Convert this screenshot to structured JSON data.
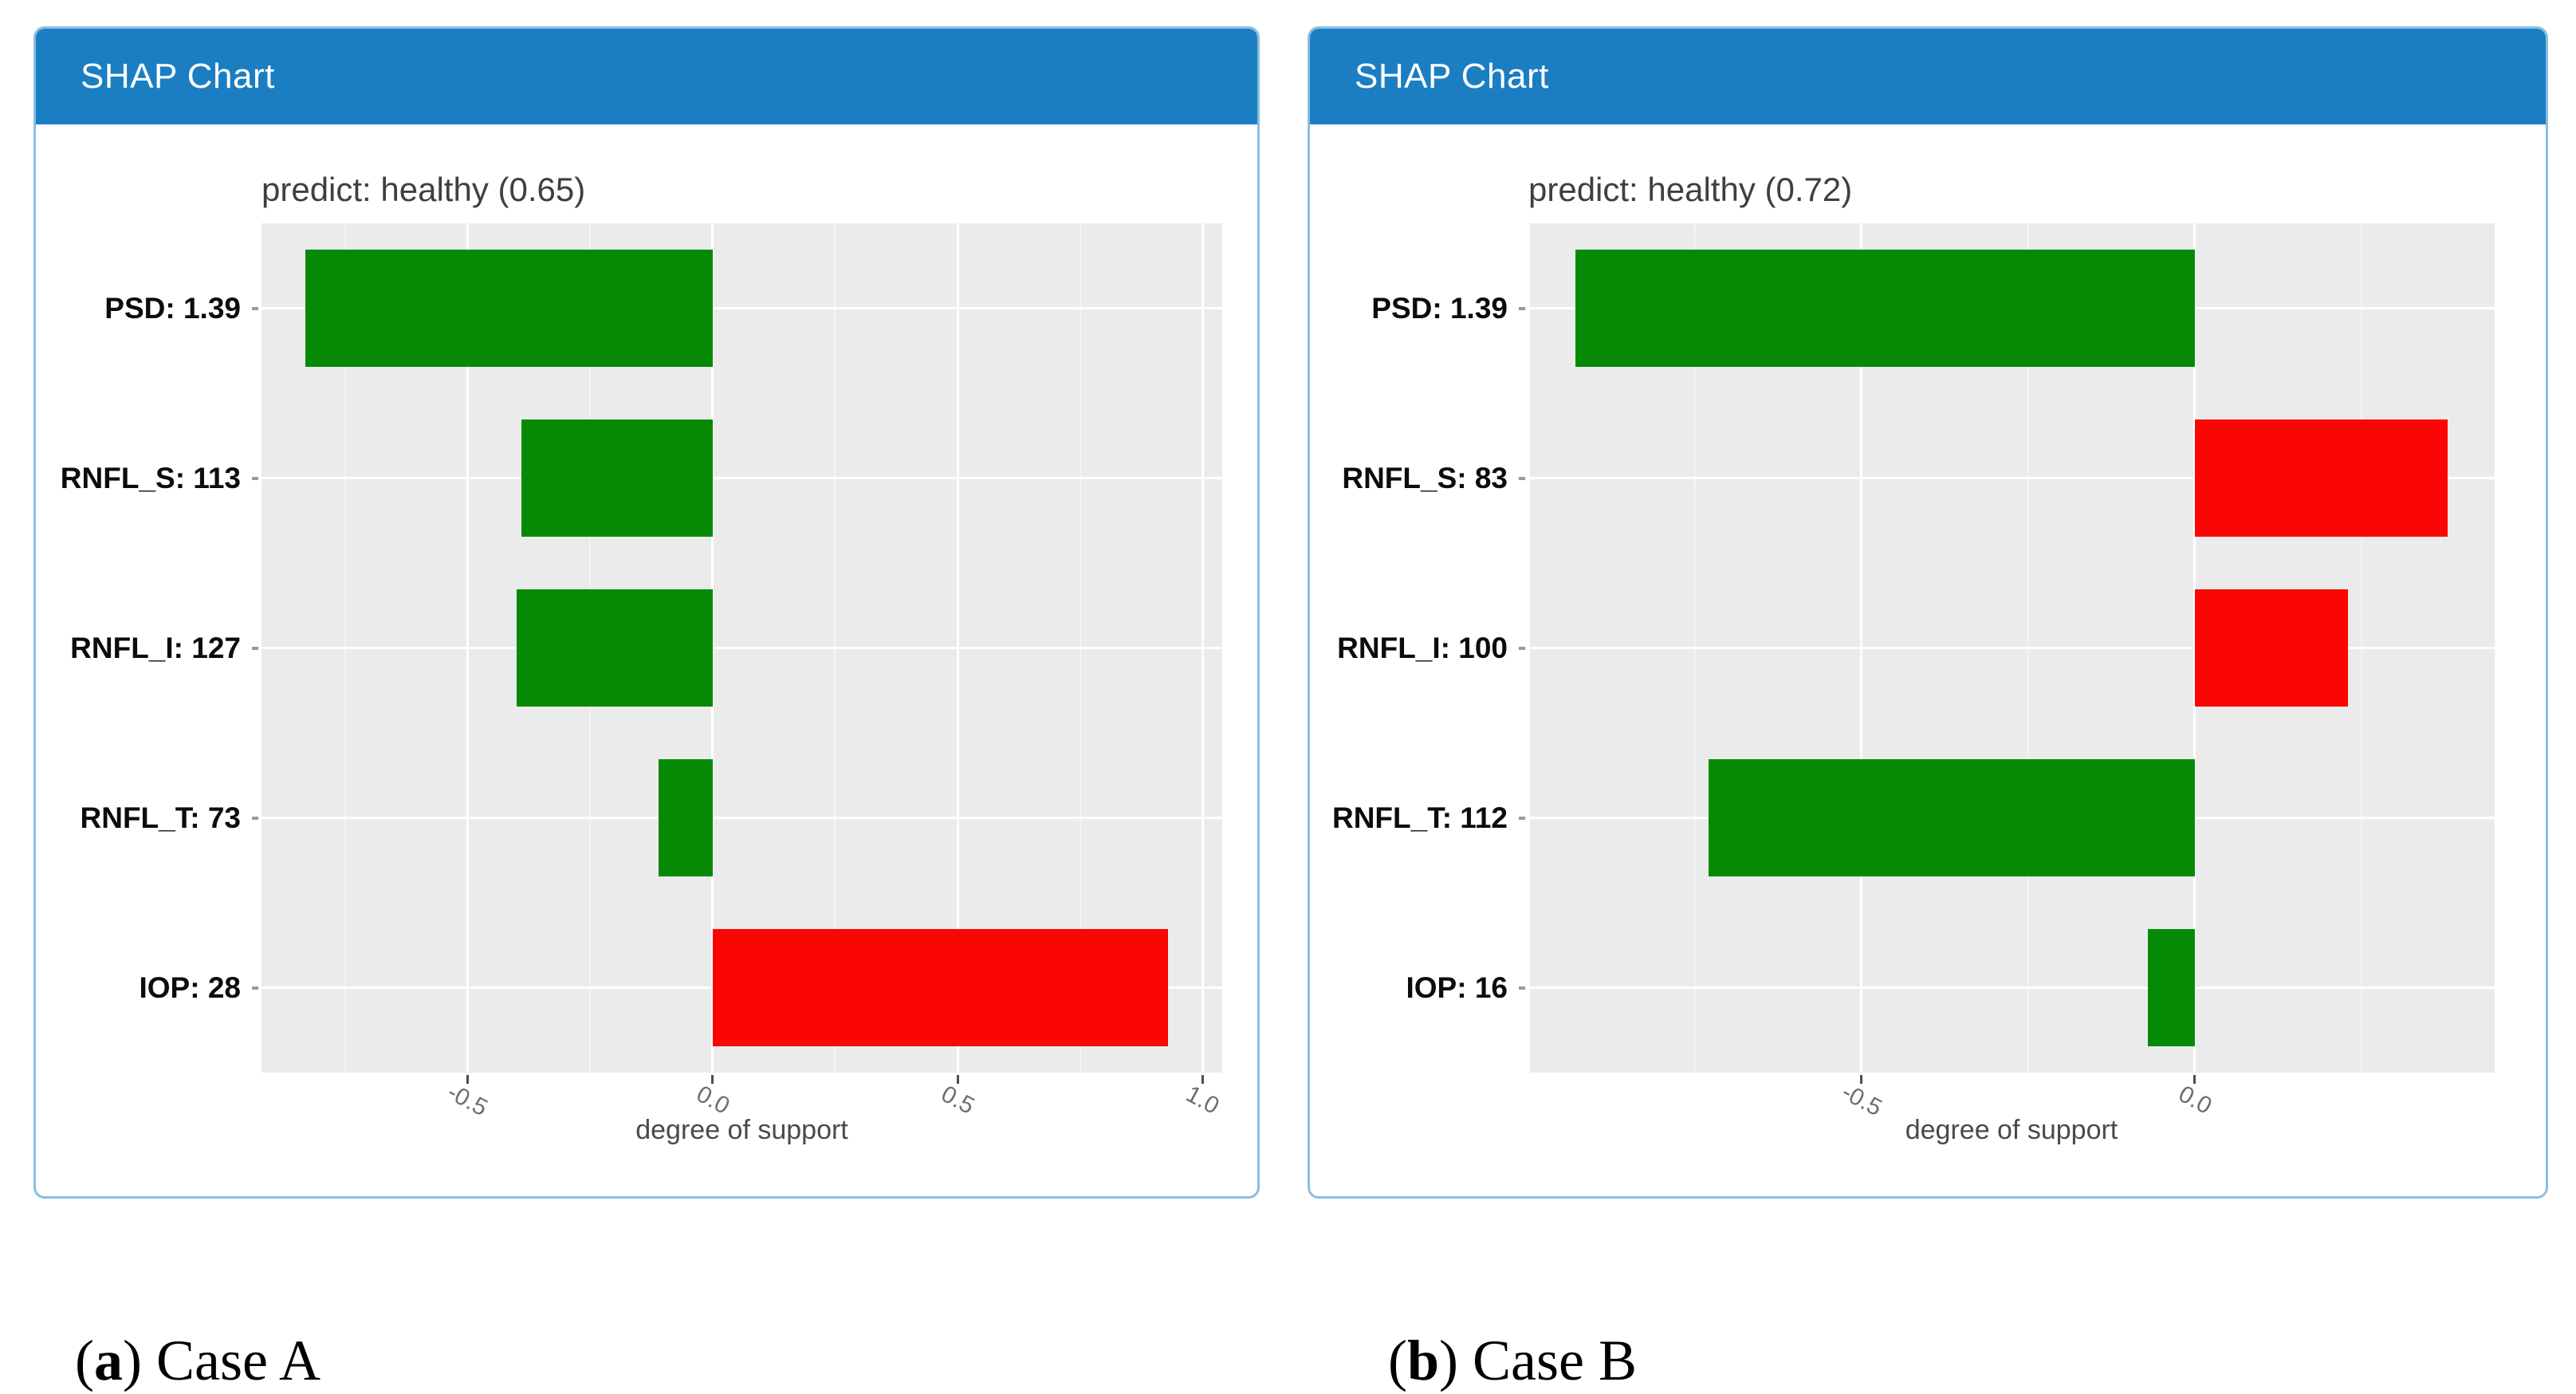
{
  "colors": {
    "header_bg": "#1b7ec2",
    "header_text": "#ffffff",
    "panel_border": "#8abfe0",
    "plot_bg": "#ebebeb",
    "grid_major": "#ffffff",
    "grid_minor": "#f4f4f4",
    "green": "#068a06",
    "red": "#fb0505",
    "title_color": "#3f3f3f",
    "tick_label": "#6e6e6e",
    "axis_title": "#4a4a4a",
    "category_label": "#0c0c0c"
  },
  "chart_data": [
    {
      "type": "bar",
      "orientation": "horizontal",
      "panel_header": "SHAP Chart",
      "title": "predict: healthy (0.65)",
      "xlabel": "degree of support",
      "xlim": [
        -0.92,
        1.04
      ],
      "xtick_values": [
        -0.5,
        0.0,
        0.5,
        1.0
      ],
      "xtick_labels": [
        "-0.5",
        "0.0",
        "0.5",
        "1.0"
      ],
      "grid": "on",
      "legend": "none",
      "categories": [
        "PSD: 1.39",
        "RNFL_S: 113",
        "RNFL_I: 127",
        "RNFL_T: 73",
        "IOP: 28"
      ],
      "values": [
        -0.83,
        -0.39,
        -0.4,
        -0.11,
        0.93
      ],
      "bar_colors": [
        "green",
        "green",
        "green",
        "green",
        "red"
      ],
      "caption": {
        "paren_open": "(",
        "marker": "a",
        "paren_close": ")",
        "label": " Case A"
      }
    },
    {
      "type": "bar",
      "orientation": "horizontal",
      "panel_header": "SHAP Chart",
      "title": "predict: healthy (0.72)",
      "xlabel": "degree of support",
      "xlim": [
        -1.0,
        0.45
      ],
      "xtick_values": [
        -0.5,
        0.0
      ],
      "xtick_labels": [
        "-0.5",
        "0.0"
      ],
      "grid": "on",
      "legend": "none",
      "categories": [
        "PSD: 1.39",
        "RNFL_S: 83",
        "RNFL_I: 100",
        "RNFL_T: 112",
        "IOP: 16"
      ],
      "values": [
        -0.93,
        0.38,
        0.23,
        -0.73,
        -0.07
      ],
      "bar_colors": [
        "green",
        "red",
        "red",
        "green",
        "green"
      ],
      "caption": {
        "paren_open": "(",
        "marker": "b",
        "paren_close": ")",
        "label": " Case B"
      }
    }
  ]
}
